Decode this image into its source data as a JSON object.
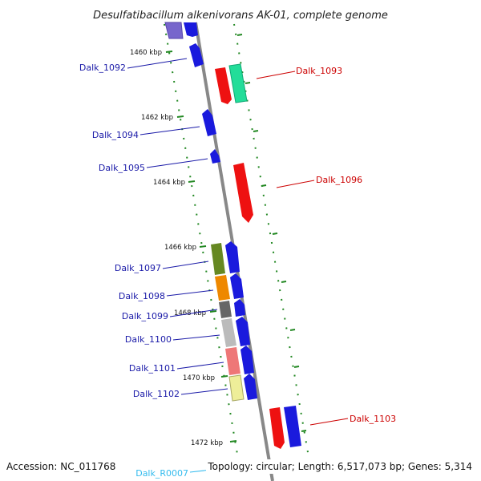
{
  "title": "Desulfatibacillum alkenivorans AK-01, complete genome",
  "accession": "Accession: NC_011768",
  "topology": "Topology: circular; Length: 6,517,073 bp; Genes: 5,314",
  "colors": {
    "backbone": "#888888",
    "tick": "#228822",
    "label_blue": "#1a1aa8",
    "label_red": "#cc0000",
    "label_cyan": "#33bbee"
  },
  "ticks": {
    "kbp_1460": "1460 kbp",
    "kbp_1462": "1462 kbp",
    "kbp_1464": "1464 kbp",
    "kbp_1466": "1466 kbp",
    "kbp_1468": "1468 kbp",
    "kbp_1470": "1470 kbp",
    "kbp_1472": "1472 kbp"
  },
  "genes": {
    "dalk_1092": "Dalk_1092",
    "dalk_1093": "Dalk_1093",
    "dalk_1094": "Dalk_1094",
    "dalk_1095": "Dalk_1095",
    "dalk_1096": "Dalk_1096",
    "dalk_1097": "Dalk_1097",
    "dalk_1098": "Dalk_1098",
    "dalk_1099": "Dalk_1099",
    "dalk_1100": "Dalk_1100",
    "dalk_1101": "Dalk_1101",
    "dalk_1102": "Dalk_1102",
    "dalk_1103": "Dalk_1103",
    "dalk_r0007": "Dalk_R0007"
  }
}
